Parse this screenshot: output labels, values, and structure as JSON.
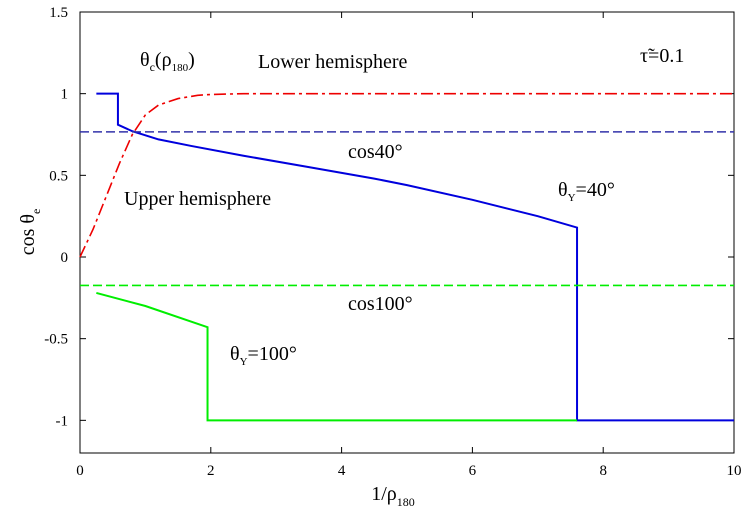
{
  "chart_data": {
    "type": "line",
    "xlabel": {
      "main": "1/ρ",
      "sub": "180"
    },
    "ylabel": {
      "main": "cos θ",
      "sub": "e"
    },
    "xlim": [
      0,
      10
    ],
    "ylim": [
      -1.2,
      1.5
    ],
    "xticks": [
      "0",
      "2",
      "4",
      "6",
      "8",
      "10"
    ],
    "xtick_values": [
      0,
      2,
      4,
      6,
      8,
      10
    ],
    "yticks": [
      "1.5",
      "1",
      "0.5",
      "0",
      "-0.5",
      "-1"
    ],
    "ytick_values": [
      1.5,
      1,
      0.5,
      0,
      -0.5,
      -1
    ],
    "grid": false,
    "series": [
      {
        "color": "#0000dd",
        "style": "solid",
        "x": [
          0.25,
          0.58,
          0.58,
          0.8,
          1.2,
          1.7,
          2.5,
          3.5,
          4.5,
          5.0,
          6.0,
          7.0,
          7.6,
          7.6,
          10.0
        ],
        "y": [
          1.0,
          1.0,
          0.81,
          0.77,
          0.72,
          0.68,
          0.62,
          0.55,
          0.48,
          0.44,
          0.35,
          0.25,
          0.18,
          -1.0,
          -1.0
        ]
      },
      {
        "color": "#00ee00",
        "style": "solid",
        "x": [
          0.25,
          1.0,
          1.95,
          1.95,
          7.6
        ],
        "y": [
          -0.22,
          -0.3,
          -0.43,
          -1.0,
          -1.0
        ]
      },
      {
        "color": "#ee0000",
        "style": "dashdot",
        "x": [
          0.0,
          0.2,
          0.4,
          0.6,
          0.8,
          1.0,
          1.2,
          1.5,
          1.8,
          2.0,
          2.5,
          3.0,
          5.0,
          10.0
        ],
        "y": [
          0.0,
          0.17,
          0.37,
          0.57,
          0.75,
          0.87,
          0.93,
          0.97,
          0.99,
          0.995,
          1.0,
          1.0,
          1.0,
          1.0
        ]
      },
      {
        "color": "#3333aa",
        "style": "dashed",
        "x": [
          0,
          10
        ],
        "y": [
          0.766,
          0.766
        ]
      },
      {
        "color": "#00ee00",
        "style": "dashed",
        "x": [
          0,
          10
        ],
        "y": [
          -0.174,
          -0.174
        ]
      }
    ],
    "annotations": {
      "tau": "τ̃=0.1",
      "theta_c": {
        "main": "θ",
        "sub1": "c",
        "paren": "(ρ",
        "sub2": "180",
        "close": ")"
      },
      "lower_hemisphere": "Lower hemisphere",
      "upper_hemisphere": "Upper hemisphere",
      "cos40": "cos40°",
      "cos100": "cos100°",
      "theta_y40": {
        "main": "θ",
        "sub": "Y",
        "rest": "=40°"
      },
      "theta_y100": {
        "main": "θ",
        "sub": "Y",
        "rest": "=100°"
      }
    },
    "annotation_color": "#dd0000"
  }
}
